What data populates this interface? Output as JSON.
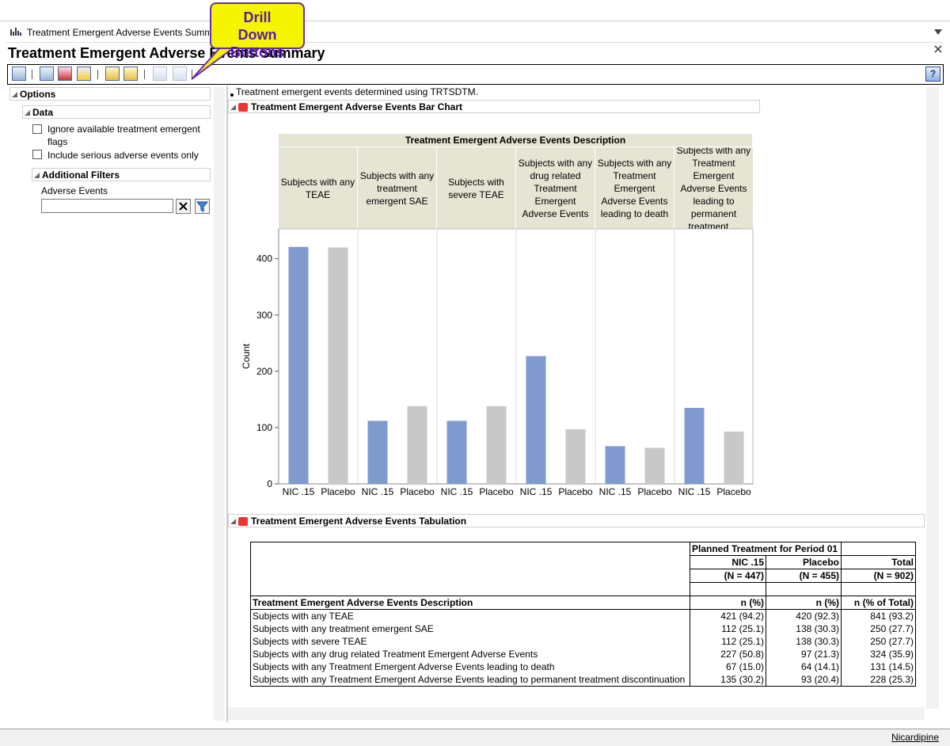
{
  "window": {
    "title": "Treatment Emergent Adverse Events Summary",
    "heading": "Treatment Emergent Adverse Events Summary",
    "help_button": "?"
  },
  "callout": "Drill Down Buttons",
  "options": {
    "title": "Options",
    "data": {
      "title": "Data",
      "checkboxes": [
        "Ignore available treatment emergent flags",
        "Include serious adverse events only"
      ]
    },
    "filters": {
      "title": "Additional Filters",
      "label": "Adverse Events"
    }
  },
  "note": "Treatment emergent events determined using TRTSDTM.",
  "chart_data": {
    "type": "bar",
    "title": "Treatment Emergent Adverse Events Bar Chart",
    "header": "Treatment Emergent Adverse Events Description",
    "groups": [
      "Subjects with any TEAE",
      "Subjects with any treatment emergent SAE",
      "Subjects with severe TEAE",
      "Subjects with any drug related Treatment Emergent Adverse Events",
      "Subjects with any Treatment Emergent Adverse Events leading to death",
      "Subjects with any Treatment Emergent Adverse Events leading to permanent treatment ..."
    ],
    "y_label": "Count",
    "series": [
      {
        "name": "NIC .15",
        "color": "#7f9acf",
        "values": [
          421,
          112,
          112,
          227,
          67,
          135
        ]
      },
      {
        "name": "Placebo",
        "color": "#c8c8c8",
        "values": [
          420,
          138,
          138,
          97,
          64,
          93
        ]
      }
    ],
    "ylim": [
      0,
      453
    ],
    "yticks": [
      0,
      100,
      200,
      300,
      400
    ]
  },
  "table": {
    "title": "Treatment Emergent Adverse Events Tabulation",
    "spanner": "Planned Treatment for Period 01",
    "columns": [
      "NIC .15",
      "Placebo",
      "Total"
    ],
    "counts": [
      "(N = 447)",
      "(N = 455)",
      "(N = 902)"
    ],
    "row_header": "Treatment Emergent Adverse Events Description",
    "stat_labels": [
      "n (%)",
      "n (%)",
      "n (% of Total)"
    ],
    "rows": [
      [
        "Subjects with any TEAE",
        "421 (94.2)",
        "420 (92.3)",
        "841 (93.2)"
      ],
      [
        "Subjects with any treatment emergent SAE",
        "112 (25.1)",
        "138 (30.3)",
        "250 (27.7)"
      ],
      [
        "Subjects with severe TEAE",
        "112 (25.1)",
        "138 (30.3)",
        "250 (27.7)"
      ],
      [
        "Subjects with any drug related Treatment Emergent Adverse Events",
        "227 (50.8)",
        "97 (21.3)",
        "324 (35.9)"
      ],
      [
        "Subjects with any Treatment Emergent Adverse Events leading to death",
        "67 (15.0)",
        "64 (14.1)",
        "131 (14.5)"
      ],
      [
        "Subjects with any Treatment Emergent Adverse Events leading to permanent treatment discontinuation",
        "135 (30.2)",
        "93 (20.4)",
        "228 (25.3)"
      ]
    ]
  },
  "status": "Nicardipine"
}
